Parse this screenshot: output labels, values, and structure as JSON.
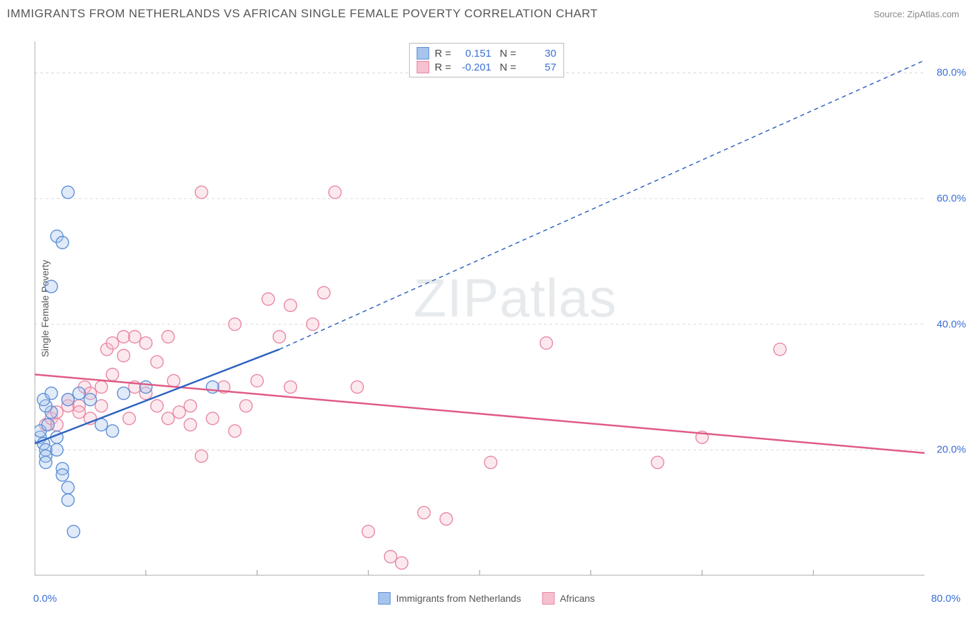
{
  "header": {
    "title": "IMMIGRANTS FROM NETHERLANDS VS AFRICAN SINGLE FEMALE POVERTY CORRELATION CHART",
    "source": "Source: ZipAtlas.com"
  },
  "watermark": "ZIPatlas",
  "chart": {
    "type": "scatter",
    "xlim": [
      0,
      80
    ],
    "ylim": [
      0,
      85
    ],
    "x_origin_label": "0.0%",
    "x_max_label": "80.0%",
    "y_ticks": [
      20,
      40,
      60,
      80
    ],
    "y_tick_labels": [
      "20.0%",
      "40.0%",
      "60.0%",
      "80.0%"
    ],
    "x_ticks": [
      10,
      20,
      30,
      40,
      50,
      60,
      70
    ],
    "y_axis_label": "Single Female Poverty",
    "background_color": "#ffffff",
    "grid_color": "#d8d8d8",
    "axis_color": "#999999",
    "marker_radius": 9,
    "marker_stroke_width": 1.4,
    "marker_fill_opacity": 0.35,
    "line_width": 2.5,
    "dash_pattern": "6 5",
    "series": [
      {
        "name": "Immigrants from Netherlands",
        "color_stroke": "#5b8fd6",
        "color_fill": "#a6c4ec",
        "line_color": "#2f63c0",
        "R": "0.151",
        "N": "30",
        "regression": {
          "x1": 0,
          "y1": 21,
          "x2": 22,
          "y2": 36
        },
        "regression_ext": {
          "x1": 22,
          "y1": 36,
          "x2": 80,
          "y2": 82
        },
        "points": [
          [
            0.5,
            22
          ],
          [
            0.5,
            23
          ],
          [
            0.8,
            21
          ],
          [
            1,
            20
          ],
          [
            1,
            19
          ],
          [
            1.2,
            24
          ],
          [
            1.5,
            26
          ],
          [
            1,
            27
          ],
          [
            0.8,
            28
          ],
          [
            1.5,
            29
          ],
          [
            2,
            22
          ],
          [
            2,
            20
          ],
          [
            2.5,
            17
          ],
          [
            2.5,
            16
          ],
          [
            3,
            14
          ],
          [
            3,
            12
          ],
          [
            3.5,
            7
          ],
          [
            3,
            28
          ],
          [
            4,
            29
          ],
          [
            5,
            28
          ],
          [
            1.5,
            46
          ],
          [
            2,
            54
          ],
          [
            2.5,
            53
          ],
          [
            3,
            61
          ],
          [
            6,
            24
          ],
          [
            7,
            23
          ],
          [
            8,
            29
          ],
          [
            10,
            30
          ],
          [
            16,
            30
          ],
          [
            1,
            18
          ]
        ]
      },
      {
        "name": "Africans",
        "color_stroke": "#e886a3",
        "color_fill": "#f6c0cf",
        "line_color": "#e05a84",
        "R": "-0.201",
        "N": "57",
        "regression": {
          "x1": 0,
          "y1": 32,
          "x2": 80,
          "y2": 19.5
        },
        "points": [
          [
            1,
            24
          ],
          [
            1.5,
            25
          ],
          [
            2,
            26
          ],
          [
            2,
            24
          ],
          [
            3,
            27
          ],
          [
            3,
            28
          ],
          [
            4,
            27
          ],
          [
            4,
            26
          ],
          [
            4.5,
            30
          ],
          [
            5,
            25
          ],
          [
            5,
            29
          ],
          [
            6,
            27
          ],
          [
            6,
            30
          ],
          [
            6.5,
            36
          ],
          [
            7,
            37
          ],
          [
            7,
            32
          ],
          [
            8,
            35
          ],
          [
            8,
            38
          ],
          [
            8.5,
            25
          ],
          [
            9,
            30
          ],
          [
            9,
            38
          ],
          [
            10,
            37
          ],
          [
            10,
            29
          ],
          [
            11,
            34
          ],
          [
            11,
            27
          ],
          [
            12,
            38
          ],
          [
            12,
            25
          ],
          [
            12.5,
            31
          ],
          [
            13,
            26
          ],
          [
            14,
            27
          ],
          [
            14,
            24
          ],
          [
            15,
            19
          ],
          [
            15,
            61
          ],
          [
            16,
            25
          ],
          [
            17,
            30
          ],
          [
            18,
            23
          ],
          [
            18,
            40
          ],
          [
            19,
            27
          ],
          [
            20,
            31
          ],
          [
            21,
            44
          ],
          [
            22,
            38
          ],
          [
            23,
            43
          ],
          [
            23,
            30
          ],
          [
            25,
            40
          ],
          [
            26,
            45
          ],
          [
            27,
            61
          ],
          [
            29,
            30
          ],
          [
            30,
            7
          ],
          [
            32,
            3
          ],
          [
            33,
            2
          ],
          [
            35,
            10
          ],
          [
            37,
            9
          ],
          [
            41,
            18
          ],
          [
            46,
            37
          ],
          [
            56,
            18
          ],
          [
            60,
            22
          ],
          [
            67,
            36
          ]
        ]
      }
    ]
  },
  "legend": {
    "items": [
      {
        "label": "Immigrants from Netherlands",
        "stroke": "#5b8fd6",
        "fill": "#a6c4ec"
      },
      {
        "label": "Africans",
        "stroke": "#e886a3",
        "fill": "#f6c0cf"
      }
    ]
  }
}
